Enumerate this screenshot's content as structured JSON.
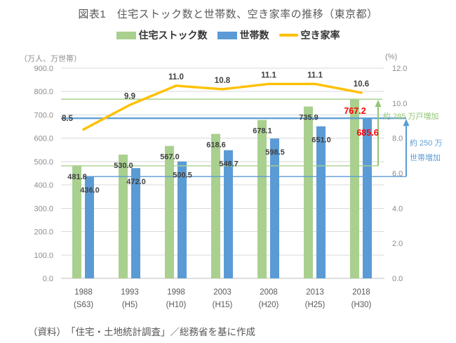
{
  "title": "図表1　住宅ストック数と世帯数、空き家率の推移（東京都）",
  "source_note": "（資料）　「住宅・土地統計調査」／総務省を基に作成",
  "legend": {
    "items": [
      {
        "label": "住宅ストック数",
        "color": "#A9D08E",
        "type": "bar"
      },
      {
        "label": "世帯数",
        "color": "#5B9BD5",
        "type": "bar"
      },
      {
        "label": "空き家率",
        "color": "#FFC000",
        "type": "line"
      }
    ]
  },
  "annotations": {
    "stock_increase": {
      "text": "約 285 万戸増加",
      "color": "#92C573"
    },
    "household_increase": {
      "line1": "約 250 万",
      "line2": "世帯増加",
      "color": "#5B9BD5"
    }
  },
  "chart_data": {
    "type": "bar",
    "subtype": "grouped bars with secondary-axis line",
    "categories": [
      "1988",
      "1993",
      "1998",
      "2003",
      "2008",
      "2013",
      "2018"
    ],
    "category_sublabels": [
      "(S63)",
      "(H5)",
      "(H10)",
      "(H15)",
      "(H20)",
      "(H25)",
      "(H30)"
    ],
    "series": [
      {
        "name": "住宅ストック数",
        "chart": "bar",
        "axis": "left",
        "color": "#A9D08E",
        "values": [
          481.8,
          530.0,
          567.0,
          618.6,
          678.1,
          735.9,
          767.2
        ]
      },
      {
        "name": "世帯数",
        "chart": "bar",
        "axis": "left",
        "color": "#5B9BD5",
        "values": [
          436.0,
          472.0,
          500.5,
          548.7,
          598.5,
          651.0,
          685.6
        ]
      },
      {
        "name": "空き家率",
        "chart": "line",
        "axis": "right",
        "color": "#FFC000",
        "values": [
          8.5,
          9.9,
          11.0,
          10.8,
          11.1,
          11.1,
          10.6
        ]
      }
    ],
    "left_axis": {
      "label": "（万人、万世帯）",
      "min": 0,
      "max": 900,
      "step": 100,
      "tick_labels": [
        "0.0",
        "100.0",
        "200.0",
        "300.0",
        "400.0",
        "500.0",
        "600.0",
        "700.0",
        "800.0",
        "900.0"
      ]
    },
    "right_axis": {
      "label": "(%)",
      "min": 0,
      "max": 12,
      "step": 2,
      "tick_labels": [
        "0.0",
        "2.0",
        "4.0",
        "6.0",
        "8.0",
        "10.0",
        "12.0"
      ]
    },
    "highlight_last_value_color": "#FF0000",
    "data_label_color": "#404040",
    "tick_label_color": "#8c8c8c",
    "x_label_color": "#595959",
    "grid_color": "#D9D9D9",
    "axis_line_color": "#BFBFBF",
    "grid": true,
    "legend_position": "top",
    "reference_lines": {
      "stock_1988": 481.8,
      "stock_2018": 767.2,
      "household_1988": 436.0,
      "household_2018": 685.6
    }
  }
}
